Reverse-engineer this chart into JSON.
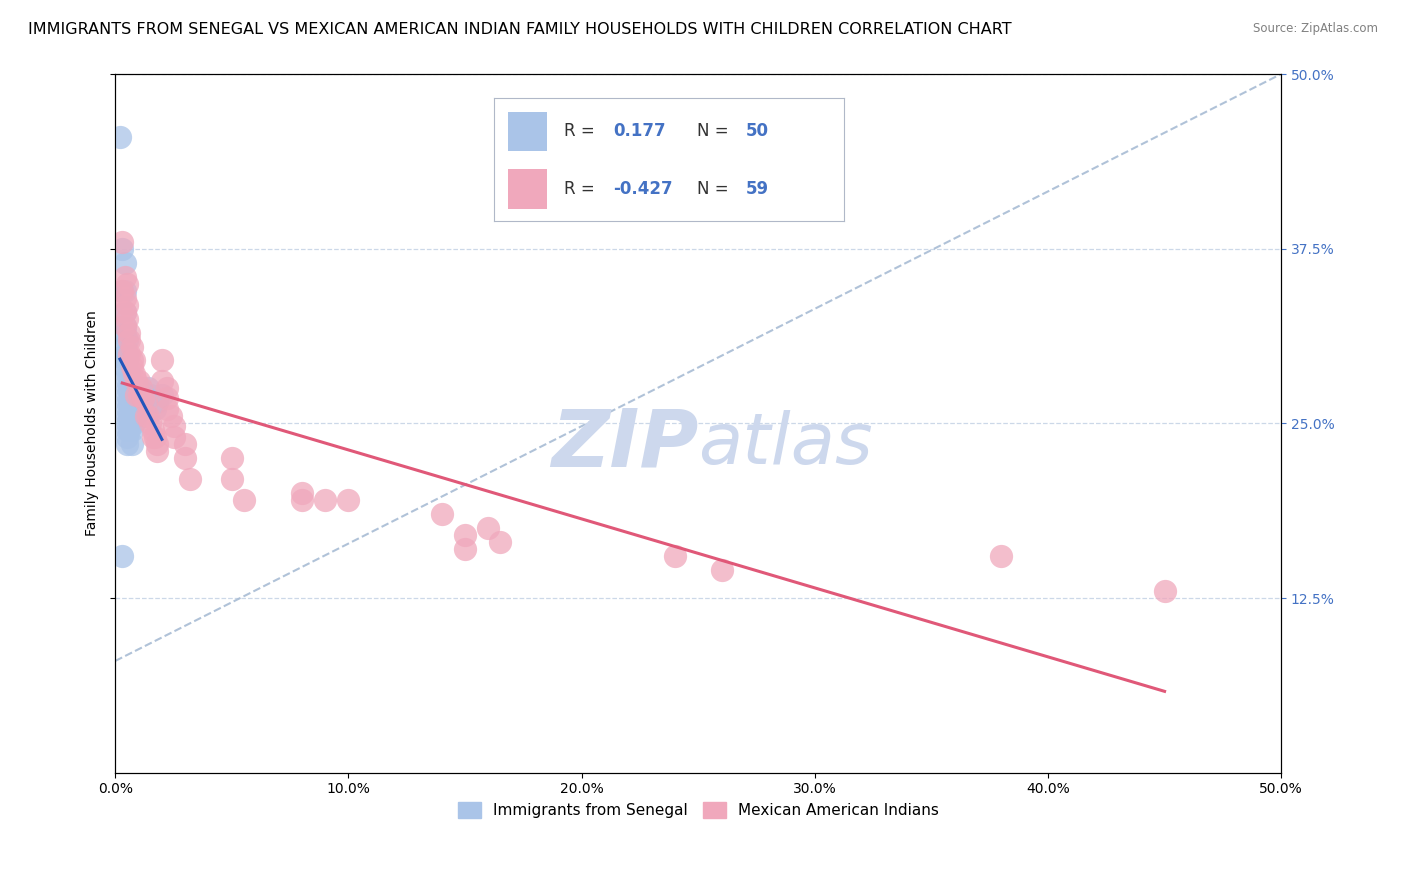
{
  "title": "IMMIGRANTS FROM SENEGAL VS MEXICAN AMERICAN INDIAN FAMILY HOUSEHOLDS WITH CHILDREN CORRELATION CHART",
  "source": "Source: ZipAtlas.com",
  "ylabel": "Family Households with Children",
  "blue_color": "#aac4e8",
  "pink_color": "#f0a8bc",
  "trendline_blue_color": "#2255bb",
  "trendline_pink_color": "#e05878",
  "trendline_grey_color": "#a8bcd4",
  "watermark_zip": "ZIP",
  "watermark_atlas": "atlas",
  "watermark_color": "#cdd8ed",
  "right_axis_color": "#4472c4",
  "legend_blue_r": "0.177",
  "legend_blue_n": "50",
  "legend_pink_r": "-0.427",
  "legend_pink_n": "59",
  "blue_scatter": [
    [
      0.002,
      0.455
    ],
    [
      0.003,
      0.375
    ],
    [
      0.003,
      0.345
    ],
    [
      0.004,
      0.365
    ],
    [
      0.004,
      0.345
    ],
    [
      0.004,
      0.33
    ],
    [
      0.004,
      0.32
    ],
    [
      0.004,
      0.315
    ],
    [
      0.004,
      0.305
    ],
    [
      0.004,
      0.3
    ],
    [
      0.004,
      0.295
    ],
    [
      0.004,
      0.29
    ],
    [
      0.005,
      0.31
    ],
    [
      0.005,
      0.3
    ],
    [
      0.005,
      0.295
    ],
    [
      0.005,
      0.285
    ],
    [
      0.005,
      0.28
    ],
    [
      0.005,
      0.275
    ],
    [
      0.005,
      0.27
    ],
    [
      0.005,
      0.265
    ],
    [
      0.005,
      0.26
    ],
    [
      0.005,
      0.255
    ],
    [
      0.005,
      0.25
    ],
    [
      0.005,
      0.245
    ],
    [
      0.005,
      0.24
    ],
    [
      0.005,
      0.235
    ],
    [
      0.006,
      0.285
    ],
    [
      0.006,
      0.275
    ],
    [
      0.006,
      0.265
    ],
    [
      0.006,
      0.255
    ],
    [
      0.006,
      0.245
    ],
    [
      0.007,
      0.275
    ],
    [
      0.007,
      0.265
    ],
    [
      0.007,
      0.255
    ],
    [
      0.007,
      0.245
    ],
    [
      0.007,
      0.235
    ],
    [
      0.008,
      0.26
    ],
    [
      0.008,
      0.25
    ],
    [
      0.009,
      0.255
    ],
    [
      0.01,
      0.275
    ],
    [
      0.01,
      0.265
    ],
    [
      0.011,
      0.27
    ],
    [
      0.012,
      0.265
    ],
    [
      0.013,
      0.27
    ],
    [
      0.014,
      0.275
    ],
    [
      0.015,
      0.27
    ],
    [
      0.003,
      0.155
    ],
    [
      0.017,
      0.26
    ],
    [
      0.018,
      0.265
    ],
    [
      0.02,
      0.27
    ]
  ],
  "pink_scatter": [
    [
      0.003,
      0.38
    ],
    [
      0.003,
      0.345
    ],
    [
      0.004,
      0.355
    ],
    [
      0.004,
      0.34
    ],
    [
      0.004,
      0.33
    ],
    [
      0.004,
      0.32
    ],
    [
      0.005,
      0.35
    ],
    [
      0.005,
      0.335
    ],
    [
      0.005,
      0.325
    ],
    [
      0.006,
      0.315
    ],
    [
      0.006,
      0.31
    ],
    [
      0.006,
      0.3
    ],
    [
      0.007,
      0.305
    ],
    [
      0.007,
      0.295
    ],
    [
      0.007,
      0.29
    ],
    [
      0.008,
      0.295
    ],
    [
      0.008,
      0.285
    ],
    [
      0.009,
      0.28
    ],
    [
      0.009,
      0.27
    ],
    [
      0.01,
      0.28
    ],
    [
      0.01,
      0.27
    ],
    [
      0.011,
      0.275
    ],
    [
      0.012,
      0.268
    ],
    [
      0.013,
      0.265
    ],
    [
      0.013,
      0.255
    ],
    [
      0.014,
      0.255
    ],
    [
      0.015,
      0.25
    ],
    [
      0.016,
      0.245
    ],
    [
      0.016,
      0.24
    ],
    [
      0.017,
      0.24
    ],
    [
      0.018,
      0.235
    ],
    [
      0.018,
      0.23
    ],
    [
      0.02,
      0.295
    ],
    [
      0.02,
      0.28
    ],
    [
      0.022,
      0.275
    ],
    [
      0.022,
      0.268
    ],
    [
      0.022,
      0.26
    ],
    [
      0.024,
      0.255
    ],
    [
      0.025,
      0.248
    ],
    [
      0.025,
      0.24
    ],
    [
      0.03,
      0.235
    ],
    [
      0.03,
      0.225
    ],
    [
      0.032,
      0.21
    ],
    [
      0.05,
      0.225
    ],
    [
      0.05,
      0.21
    ],
    [
      0.055,
      0.195
    ],
    [
      0.08,
      0.2
    ],
    [
      0.08,
      0.195
    ],
    [
      0.09,
      0.195
    ],
    [
      0.1,
      0.195
    ],
    [
      0.14,
      0.185
    ],
    [
      0.15,
      0.17
    ],
    [
      0.15,
      0.16
    ],
    [
      0.16,
      0.175
    ],
    [
      0.165,
      0.165
    ],
    [
      0.24,
      0.155
    ],
    [
      0.26,
      0.145
    ],
    [
      0.38,
      0.155
    ],
    [
      0.45,
      0.13
    ]
  ],
  "xlim": [
    0.0,
    0.5
  ],
  "ylim": [
    0.0,
    0.5
  ],
  "grid_color": "#ccd8e8",
  "background_color": "#ffffff",
  "title_fontsize": 11.5,
  "axis_label_fontsize": 10,
  "tick_fontsize": 10,
  "legend_fontsize": 12,
  "watermark_fontsize_zip": 58,
  "watermark_fontsize_atlas": 52,
  "right_axis_color_ticks": "#4472c4"
}
